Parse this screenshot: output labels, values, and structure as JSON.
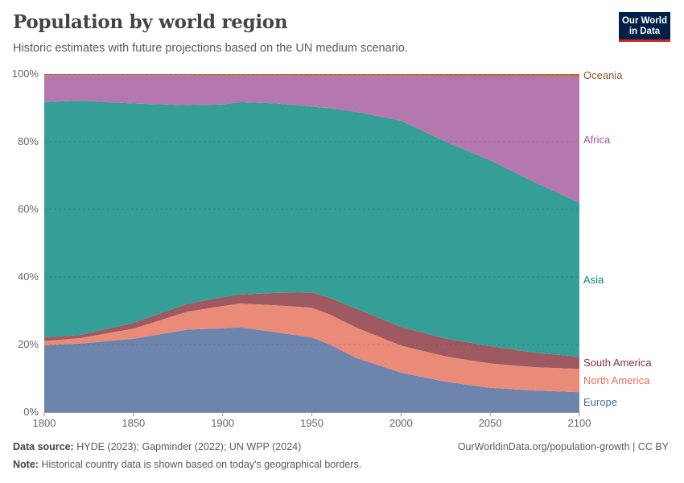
{
  "header": {
    "title": "Population by world region",
    "subtitle": "Historic estimates with future projections based on the UN medium scenario.",
    "logo": "Our World in Data"
  },
  "footer": {
    "source_label": "Data source:",
    "source": "HYDE (2023); Gapminder (2022); UN WPP (2024)",
    "url": "OurWorldinData.org/population-growth | CC BY",
    "note_label": "Note:",
    "note": "Historical country data is shown based on today's geographical borders."
  },
  "chart_data": {
    "type": "area",
    "stacked": true,
    "normalized": true,
    "x": [
      1800,
      1820,
      1850,
      1880,
      1900,
      1910,
      1930,
      1950,
      1960,
      1975,
      2000,
      2025,
      2050,
      2075,
      2100
    ],
    "xlim": [
      1800,
      2100
    ],
    "ylim": [
      0,
      100
    ],
    "x_ticks": [
      "1800",
      "1850",
      "1900",
      "1950",
      "2000",
      "2050",
      "2100"
    ],
    "y_ticks": [
      "0%",
      "20%",
      "40%",
      "60%",
      "80%",
      "100%"
    ],
    "grid": true,
    "legend": "right-inline-labels",
    "series": [
      {
        "name": "Europe",
        "color": "#6d84ad",
        "label_color": "#4c6a9c",
        "values": [
          19.8,
          20.3,
          21.7,
          24.4,
          24.8,
          25.1,
          23.6,
          22.1,
          20.0,
          16.0,
          11.7,
          9.0,
          7.2,
          6.4,
          5.9
        ]
      },
      {
        "name": "North America",
        "color": "#ea8a78",
        "label_color": "#e56e5a",
        "values": [
          1.2,
          1.6,
          3.0,
          5.3,
          6.6,
          7.0,
          8.0,
          8.8,
          8.9,
          9.0,
          8.0,
          7.5,
          7.2,
          6.9,
          6.9
        ]
      },
      {
        "name": "South America",
        "color": "#9e5961",
        "label_color": "#883039",
        "values": [
          1.1,
          0.9,
          1.7,
          2.3,
          2.6,
          2.7,
          3.7,
          4.5,
          4.9,
          5.6,
          5.5,
          5.3,
          5.1,
          4.3,
          3.6
        ]
      },
      {
        "name": "Asia",
        "color": "#349e97",
        "label_color": "#00847e",
        "values": [
          69.6,
          69.3,
          64.9,
          58.8,
          57.0,
          56.9,
          56.0,
          55.0,
          56.1,
          58.2,
          61.0,
          58.2,
          55.0,
          50.4,
          45.5
        ]
      },
      {
        "name": "Africa",
        "color": "#b477ae",
        "label_color": "#a2559c",
        "values": [
          8.0,
          7.6,
          8.4,
          8.9,
          8.6,
          7.9,
          8.3,
          9.1,
          9.6,
          10.7,
          13.3,
          19.4,
          24.9,
          31.4,
          37.4
        ]
      },
      {
        "name": "Oceania",
        "color": "#b2733f",
        "label_color": "#9a5129",
        "values": [
          0.3,
          0.3,
          0.3,
          0.3,
          0.4,
          0.4,
          0.4,
          0.5,
          0.5,
          0.5,
          0.5,
          0.6,
          0.6,
          0.6,
          0.7
        ]
      }
    ]
  }
}
